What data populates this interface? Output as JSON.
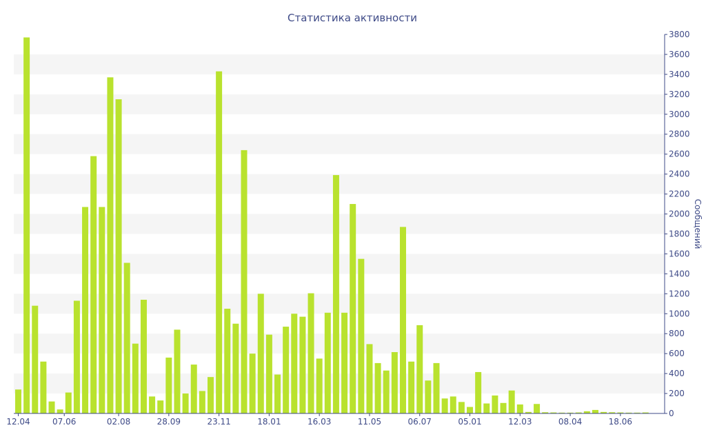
{
  "chart_data": {
    "type": "bar",
    "title": "Статистика активности",
    "xlabel": "",
    "ylabel": "Сообщений",
    "y_axis_side": "right",
    "ylim": [
      0,
      3800
    ],
    "y_ticks": [
      0,
      200,
      400,
      600,
      800,
      1000,
      1200,
      1400,
      1600,
      1800,
      2000,
      2200,
      2400,
      2600,
      2800,
      3000,
      3200,
      3400,
      3600,
      3800
    ],
    "grid": "alternating horizontal bands",
    "bar_color": "#b9e22e",
    "text_color": "#3e4a87",
    "x_tick_labels": [
      {
        "label": "12.04",
        "index": 0
      },
      {
        "label": "07.06",
        "index": 5.5
      },
      {
        "label": "02.08",
        "index": 12
      },
      {
        "label": "28.09",
        "index": 18
      },
      {
        "label": "23.11",
        "index": 24
      },
      {
        "label": "18.01",
        "index": 30
      },
      {
        "label": "16.03",
        "index": 36
      },
      {
        "label": "11.05",
        "index": 42
      },
      {
        "label": "06.07",
        "index": 48
      },
      {
        "label": "05.01",
        "index": 54
      },
      {
        "label": "12.03",
        "index": 60
      },
      {
        "label": "08.04",
        "index": 66
      },
      {
        "label": "18.06",
        "index": 72
      }
    ],
    "values": [
      240,
      3770,
      1080,
      520,
      120,
      40,
      210,
      1130,
      2070,
      2580,
      2070,
      3370,
      3150,
      1510,
      700,
      1140,
      170,
      130,
      560,
      840,
      200,
      490,
      225,
      365,
      3430,
      1050,
      900,
      2640,
      600,
      1200,
      790,
      390,
      870,
      1000,
      970,
      1205,
      550,
      1010,
      2390,
      1010,
      2100,
      1550,
      695,
      505,
      430,
      615,
      1870,
      520,
      885,
      330,
      505,
      150,
      170,
      115,
      65,
      415,
      100,
      180,
      105,
      230,
      90,
      15,
      95,
      12,
      10,
      8,
      8,
      10,
      22,
      35,
      15,
      12,
      10,
      8,
      8,
      10
    ]
  }
}
